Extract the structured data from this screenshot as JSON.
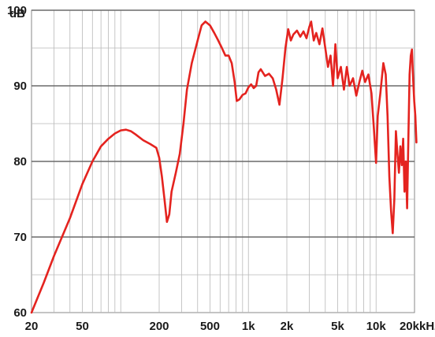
{
  "chart_data": {
    "type": "line",
    "title": "",
    "xlabel": "",
    "ylabel": "dB",
    "x_unit": "kHz",
    "x_scale": "log",
    "xlim": [
      20,
      20000
    ],
    "ylim": [
      60,
      100
    ],
    "grid": true,
    "x_ticks": [
      {
        "value": 20,
        "label": "20"
      },
      {
        "value": 50,
        "label": "50"
      },
      {
        "value": 200,
        "label": "200"
      },
      {
        "value": 500,
        "label": "500"
      },
      {
        "value": 1000,
        "label": "1k"
      },
      {
        "value": 2000,
        "label": "2k"
      },
      {
        "value": 5000,
        "label": "5k"
      },
      {
        "value": 10000,
        "label": "10k"
      },
      {
        "value": 20000,
        "label": "20k"
      }
    ],
    "y_ticks": [
      {
        "value": 60,
        "label": "60"
      },
      {
        "value": 70,
        "label": "70"
      },
      {
        "value": 80,
        "label": "80"
      },
      {
        "value": 90,
        "label": "90"
      },
      {
        "value": 100,
        "label": "100"
      }
    ],
    "series": [
      {
        "name": "",
        "color": "#e4231f",
        "points": [
          [
            20,
            60
          ],
          [
            25,
            64
          ],
          [
            30,
            67.5
          ],
          [
            40,
            72.5
          ],
          [
            50,
            77
          ],
          [
            60,
            80
          ],
          [
            70,
            82
          ],
          [
            80,
            83
          ],
          [
            90,
            83.7
          ],
          [
            100,
            84.1
          ],
          [
            110,
            84.2
          ],
          [
            120,
            84
          ],
          [
            130,
            83.6
          ],
          [
            150,
            82.8
          ],
          [
            170,
            82.3
          ],
          [
            190,
            81.8
          ],
          [
            200,
            80.5
          ],
          [
            210,
            78
          ],
          [
            220,
            75
          ],
          [
            230,
            72
          ],
          [
            240,
            73
          ],
          [
            250,
            76
          ],
          [
            270,
            78.5
          ],
          [
            290,
            81
          ],
          [
            310,
            85
          ],
          [
            330,
            89.5
          ],
          [
            360,
            93
          ],
          [
            400,
            96
          ],
          [
            430,
            98
          ],
          [
            460,
            98.5
          ],
          [
            500,
            98
          ],
          [
            540,
            97
          ],
          [
            580,
            96
          ],
          [
            620,
            95
          ],
          [
            660,
            94
          ],
          [
            700,
            94
          ],
          [
            740,
            93
          ],
          [
            780,
            90.5
          ],
          [
            810,
            88
          ],
          [
            850,
            88.2
          ],
          [
            900,
            88.8
          ],
          [
            950,
            89
          ],
          [
            1000,
            89.8
          ],
          [
            1050,
            90.2
          ],
          [
            1100,
            89.7
          ],
          [
            1150,
            90
          ],
          [
            1200,
            91.8
          ],
          [
            1250,
            92.2
          ],
          [
            1350,
            91.3
          ],
          [
            1450,
            91.6
          ],
          [
            1550,
            91
          ],
          [
            1650,
            89.5
          ],
          [
            1750,
            87.5
          ],
          [
            1850,
            91
          ],
          [
            1950,
            95
          ],
          [
            2050,
            97.5
          ],
          [
            2150,
            96
          ],
          [
            2250,
            96.8
          ],
          [
            2400,
            97.3
          ],
          [
            2550,
            96.5
          ],
          [
            2700,
            97.2
          ],
          [
            2850,
            96.3
          ],
          [
            3000,
            97.8
          ],
          [
            3100,
            98.5
          ],
          [
            3250,
            96
          ],
          [
            3400,
            97
          ],
          [
            3600,
            95.5
          ],
          [
            3800,
            97.6
          ],
          [
            4000,
            95
          ],
          [
            4200,
            92.5
          ],
          [
            4400,
            94
          ],
          [
            4600,
            90
          ],
          [
            4800,
            95.5
          ],
          [
            5000,
            91
          ],
          [
            5300,
            92.5
          ],
          [
            5600,
            89.5
          ],
          [
            5900,
            92.5
          ],
          [
            6200,
            90
          ],
          [
            6600,
            91
          ],
          [
            7000,
            88.7
          ],
          [
            7400,
            90.5
          ],
          [
            7800,
            92
          ],
          [
            8200,
            90.5
          ],
          [
            8700,
            91.5
          ],
          [
            9200,
            89
          ],
          [
            9600,
            84.5
          ],
          [
            10000,
            79.8
          ],
          [
            10300,
            86
          ],
          [
            10800,
            89
          ],
          [
            11400,
            93
          ],
          [
            11900,
            91.5
          ],
          [
            12300,
            86
          ],
          [
            12700,
            78
          ],
          [
            13100,
            73.5
          ],
          [
            13500,
            70.5
          ],
          [
            13900,
            75
          ],
          [
            14300,
            84
          ],
          [
            14700,
            81
          ],
          [
            15100,
            78.5
          ],
          [
            15500,
            82
          ],
          [
            15900,
            79.5
          ],
          [
            16300,
            83
          ],
          [
            16700,
            76
          ],
          [
            17100,
            80
          ],
          [
            17500,
            73.8
          ],
          [
            17900,
            83
          ],
          [
            18300,
            91.5
          ],
          [
            18700,
            94
          ],
          [
            19100,
            94.8
          ],
          [
            19500,
            91
          ],
          [
            19900,
            88
          ],
          [
            20300,
            86
          ],
          [
            20700,
            82.5
          ]
        ]
      }
    ]
  }
}
